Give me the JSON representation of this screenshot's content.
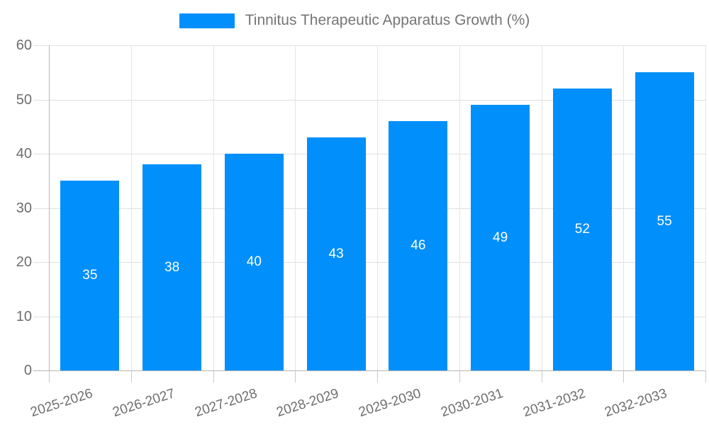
{
  "legend": {
    "series_label": "Tinnitus Therapeutic Apparatus Growth (%)",
    "swatch_color": "#008FFB"
  },
  "chart_data": {
    "type": "bar",
    "title": "Tinnitus Therapeutic Apparatus Growth (%)",
    "categories": [
      "2025-2026",
      "2026-2027",
      "2027-2028",
      "2028-2029",
      "2029-2030",
      "2030-2031",
      "2031-2032",
      "2032-2033"
    ],
    "values": [
      35,
      38,
      40,
      43,
      46,
      49,
      52,
      55
    ],
    "xlabel": "",
    "ylabel": "",
    "ylim": [
      0,
      60
    ],
    "yticks": [
      0,
      10,
      20,
      30,
      40,
      50,
      60
    ],
    "grid": true,
    "legend_position": "top",
    "bar_color": "#008FFB",
    "value_label_color": "#ffffff",
    "axis_text_color": "#6e6e6e",
    "grid_color": "#e0e0e0"
  }
}
